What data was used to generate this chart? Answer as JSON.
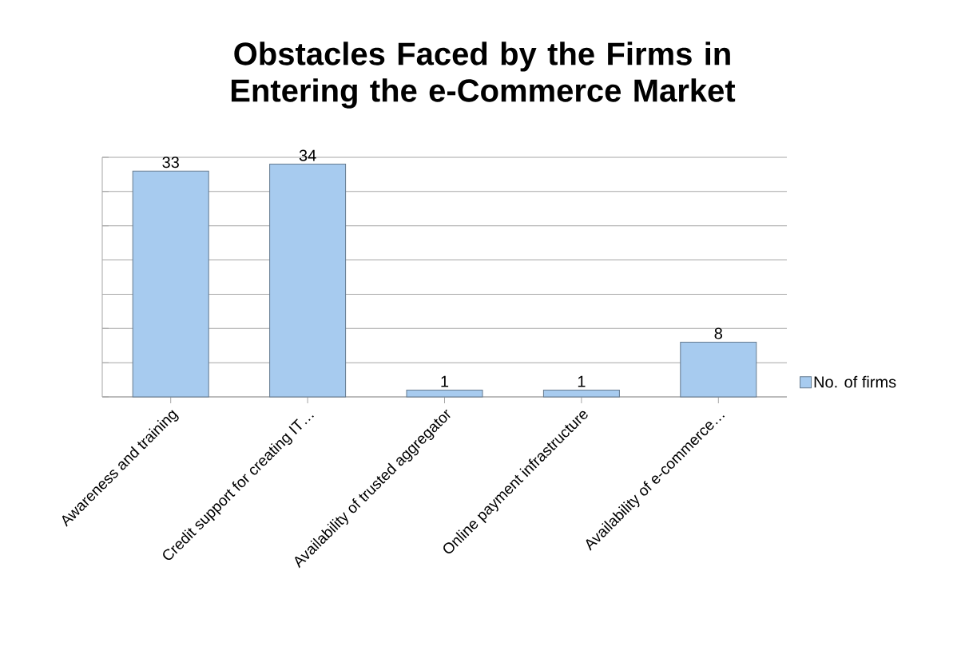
{
  "chart_data": {
    "type": "bar",
    "title": "Obstacles Faced by the Firms in Entering the e-Commerce Market",
    "categories": [
      "Awareness and training",
      "Credit support for creating IT…",
      "Availability of trusted aggregator",
      "Online payment infrastructure",
      "Availability of e-commerce…"
    ],
    "series": [
      {
        "name": "No. of firms",
        "color": "#a7cbef",
        "values": [
          33,
          34,
          1,
          1,
          8
        ]
      }
    ],
    "ylim": [
      0,
      35
    ],
    "tick_labels": "x",
    "grid": "y",
    "legend": "right",
    "data_labels": true
  }
}
